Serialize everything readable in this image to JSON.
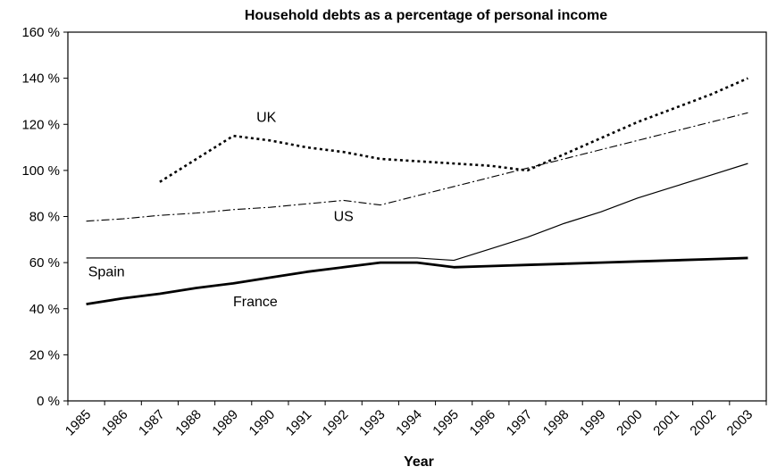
{
  "chart_data": {
    "type": "line",
    "title": "Household debts as a percentage of personal income",
    "xlabel": "Year",
    "ylabel": "",
    "ylim": [
      0,
      160
    ],
    "yticks": [
      "0 %",
      "20 %",
      "40 %",
      "60 %",
      "80 %",
      "100 %",
      "120 %",
      "140 %",
      "160 %"
    ],
    "ytick_values": [
      0,
      20,
      40,
      60,
      80,
      100,
      120,
      140,
      160
    ],
    "categories": [
      "1985",
      "1986",
      "1987",
      "1988",
      "1989",
      "1990",
      "1991",
      "1992",
      "1993",
      "1994",
      "1995",
      "1996",
      "1997",
      "1998",
      "1999",
      "2000",
      "2001",
      "2002",
      "2003"
    ],
    "grid": false,
    "legend": "none (series labelled directly on plot)",
    "series": [
      {
        "name": "UK",
        "style": "dotted",
        "values": [
          null,
          null,
          95,
          105,
          115,
          113,
          110,
          108,
          105,
          104,
          103,
          102,
          100,
          107,
          114,
          121,
          127,
          133,
          140
        ]
      },
      {
        "name": "US",
        "style": "dash-dot",
        "values": [
          78,
          79,
          80.5,
          81.5,
          83,
          84,
          85.5,
          87,
          85,
          89,
          93,
          97,
          101,
          105,
          109,
          113,
          117,
          121,
          125
        ]
      },
      {
        "name": "Spain",
        "style": "thin",
        "values": [
          62,
          62,
          62,
          62,
          62,
          62,
          62,
          62,
          62,
          62,
          61,
          66,
          71,
          77,
          82,
          88,
          93,
          98,
          103
        ]
      },
      {
        "name": "France",
        "style": "thick",
        "values": [
          42,
          44.5,
          46.5,
          49,
          51,
          53.5,
          56,
          58,
          60,
          60,
          58,
          58.5,
          59,
          59.5,
          60,
          60.5,
          61,
          61.5,
          62
        ]
      }
    ]
  }
}
